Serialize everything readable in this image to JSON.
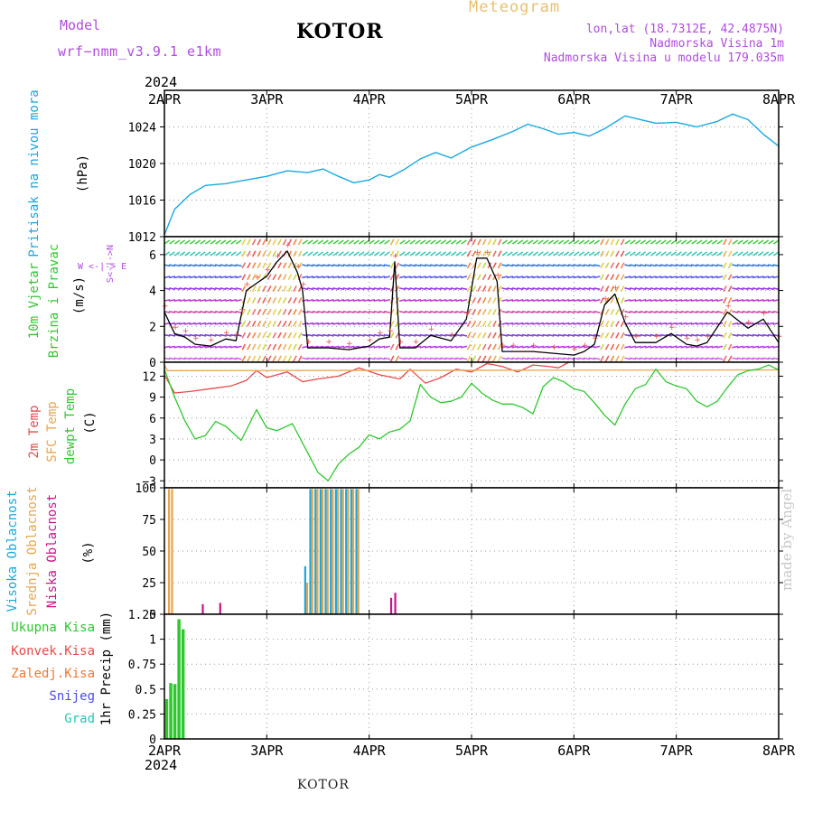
{
  "header": {
    "model_label": "Model",
    "model_name": "wrf−nmm_v3.9.1  e1km",
    "station": "KOTOR",
    "meteogram_label": "Meteogram",
    "lonlat": "lon,lat (18.7312E, 42.4875N)",
    "altitude": "Nadmorska Visina 1m",
    "model_altitude": "Nadmorska Visina u modelu 179.035m",
    "watermark": "made by Angel",
    "footer_station": "KOTOR"
  },
  "time_axis": {
    "year": "2024",
    "ticks": [
      "2APR",
      "3APR",
      "4APR",
      "5APR",
      "6APR",
      "7APR",
      "8APR"
    ],
    "range_days": [
      0,
      6
    ]
  },
  "colors": {
    "pressure": "#19a8e0",
    "temp2m": "#e84a4a",
    "sfc_temp": "#e8a54a",
    "dewpt": "#2ec82e",
    "high_cloud": "#19a8e0",
    "mid_cloud": "#e8a54a",
    "low_cloud": "#c8148c",
    "total_precip": "#2ec82e",
    "conv_precip": "#e84a4a",
    "frozen_precip": "#f07830",
    "snow": "#4a4ae8",
    "hail": "#26c8b4",
    "wind_speed_line": "#000000",
    "ylabel_pressure": "#19a8e0",
    "ylabel_wind": "#2ec82e"
  },
  "chart_data": [
    {
      "type": "line",
      "name": "pressure",
      "ylabel": [
        "Pritisak na nivou mora",
        "(hPa)"
      ],
      "ylim": [
        1012,
        1028
      ],
      "yticks": [
        1012,
        1016,
        1020,
        1024
      ],
      "grid": true,
      "series": [
        {
          "x": [
            0,
            0.1,
            0.25,
            0.4,
            0.6,
            0.8,
            1.0,
            1.2,
            1.4,
            1.55,
            1.7,
            1.85,
            2.0,
            2.1,
            2.2,
            2.35,
            2.5,
            2.65,
            2.8,
            3.0,
            3.2,
            3.4,
            3.55,
            3.7,
            3.85,
            4.0,
            4.15,
            4.3,
            4.5,
            4.65,
            4.8,
            5.0,
            5.2,
            5.4,
            5.55,
            5.7,
            5.85,
            6.0
          ],
          "y": [
            1012.2,
            1015.0,
            1016.6,
            1017.6,
            1017.8,
            1018.2,
            1018.6,
            1019.2,
            1019.0,
            1019.4,
            1018.6,
            1017.9,
            1018.2,
            1018.8,
            1018.5,
            1019.4,
            1020.5,
            1021.2,
            1020.6,
            1021.8,
            1022.6,
            1023.5,
            1024.3,
            1023.8,
            1023.2,
            1023.4,
            1023.0,
            1023.8,
            1025.2,
            1024.8,
            1024.4,
            1024.5,
            1024.0,
            1024.6,
            1025.4,
            1024.8,
            1023.2,
            1021.9
          ]
        }
      ]
    },
    {
      "type": "line",
      "name": "wind",
      "ylabel": [
        "10m Vjetar",
        "Brzina i Pravac",
        "(m/s)"
      ],
      "compass": "W <-|-> E",
      "compass_vertical": "S<-|->N",
      "ylim": [
        0,
        7
      ],
      "yticks": [
        0,
        2,
        4,
        6
      ],
      "grid": true,
      "series": [
        {
          "x": [
            0,
            0.1,
            0.2,
            0.3,
            0.45,
            0.6,
            0.7,
            0.75,
            0.8,
            0.9,
            1.0,
            1.1,
            1.2,
            1.3,
            1.35,
            1.4,
            1.6,
            1.8,
            2.0,
            2.1,
            2.2,
            2.25,
            2.3,
            2.45,
            2.6,
            2.8,
            2.95,
            3.05,
            3.15,
            3.25,
            3.3,
            3.4,
            3.6,
            3.8,
            4.0,
            4.1,
            4.2,
            4.3,
            4.4,
            4.5,
            4.6,
            4.8,
            4.95,
            5.1,
            5.2,
            5.3,
            5.5,
            5.7,
            5.85,
            6.0
          ],
          "y": [
            2.8,
            1.6,
            1.4,
            1.0,
            0.9,
            1.3,
            1.2,
            2.6,
            4.0,
            4.4,
            4.8,
            5.6,
            6.2,
            5.0,
            4.0,
            0.8,
            0.8,
            0.7,
            0.9,
            1.3,
            1.4,
            5.6,
            0.8,
            0.8,
            1.5,
            1.2,
            2.4,
            5.8,
            5.8,
            4.5,
            0.6,
            0.6,
            0.6,
            0.5,
            0.4,
            0.6,
            1.0,
            3.2,
            3.8,
            2.2,
            1.1,
            1.1,
            1.6,
            1.0,
            0.9,
            1.1,
            2.8,
            1.9,
            2.4,
            1.1
          ]
        }
      ]
    },
    {
      "type": "line",
      "name": "temperature",
      "ylabel": [
        "2m Temp",
        "SFC Temp",
        "dewpt Temp",
        "(C)"
      ],
      "ylim": [
        -4,
        14
      ],
      "yticks": [
        -3,
        0,
        3,
        6,
        9,
        12
      ],
      "grid": true,
      "series": [
        {
          "name": "2m Temp",
          "x": [
            0,
            0.1,
            0.25,
            0.45,
            0.65,
            0.8,
            0.9,
            1.0,
            1.2,
            1.35,
            1.5,
            1.7,
            1.9,
            2.1,
            2.3,
            2.4,
            2.55,
            2.7,
            2.85,
            3.0,
            3.15,
            3.3,
            3.45,
            3.6,
            3.75,
            3.85,
            3.95
          ],
          "y": [
            12.2,
            9.6,
            9.8,
            10.2,
            10.6,
            11.4,
            12.8,
            11.8,
            12.6,
            11.2,
            11.6,
            12.0,
            13.2,
            12.2,
            11.6,
            13.0,
            11.0,
            11.8,
            13.0,
            12.6,
            13.8,
            13.4,
            12.6,
            13.6,
            13.4,
            13.2,
            14.0
          ]
        },
        {
          "name": "SFC Temp",
          "x": [
            0,
            0.03,
            6.0
          ],
          "y": [
            13.6,
            12.8,
            12.9
          ]
        },
        {
          "name": "dewpt Temp",
          "x": [
            0,
            0.1,
            0.2,
            0.3,
            0.4,
            0.5,
            0.6,
            0.75,
            0.9,
            1.0,
            1.1,
            1.25,
            1.4,
            1.5,
            1.6,
            1.7,
            1.8,
            1.9,
            2.0,
            2.1,
            2.2,
            2.3,
            2.4,
            2.5,
            2.6,
            2.7,
            2.8,
            2.9,
            3.0,
            3.1,
            3.2,
            3.3,
            3.4,
            3.5,
            3.6,
            3.7,
            3.8,
            3.9,
            4.0,
            4.1,
            4.2,
            4.3,
            4.4,
            4.5,
            4.6,
            4.7,
            4.8,
            4.9,
            5.0,
            5.1,
            5.2,
            5.3,
            5.4,
            5.5,
            5.6,
            5.7,
            5.8,
            5.9,
            6.0
          ],
          "y": [
            13.0,
            9.0,
            5.6,
            3.0,
            3.5,
            5.5,
            4.8,
            2.8,
            7.2,
            4.6,
            4.2,
            5.2,
            1.0,
            -1.8,
            -3.0,
            -0.6,
            0.8,
            1.8,
            3.6,
            3.0,
            4.0,
            4.4,
            5.6,
            10.8,
            9.0,
            8.2,
            8.4,
            9.0,
            11.0,
            9.6,
            8.6,
            8.0,
            8.0,
            7.5,
            6.6,
            10.5,
            11.8,
            11.2,
            10.2,
            9.8,
            8.2,
            6.4,
            5.0,
            8.0,
            10.2,
            10.8,
            13.0,
            11.2,
            10.6,
            10.2,
            8.4,
            7.6,
            8.4,
            10.4,
            12.2,
            12.8,
            13.0,
            13.6,
            12.9
          ]
        }
      ]
    },
    {
      "type": "bar",
      "name": "cloud",
      "ylabel": [
        "Visoka Oblacnost",
        "Srednja Oblacnost",
        "Niska Oblacnost",
        "(%)"
      ],
      "ylim": [
        0,
        100
      ],
      "yticks": [
        0,
        25,
        50,
        75,
        100
      ],
      "grid": true,
      "series": [
        {
          "name": "Visoka Oblacnost",
          "x": [
            1.37,
            1.42,
            1.47,
            1.52,
            1.57,
            1.62,
            1.67,
            1.72,
            1.77,
            1.82,
            1.87
          ],
          "values": [
            38,
            99,
            99,
            99,
            99,
            99,
            99,
            99,
            99,
            99,
            99
          ]
        },
        {
          "name": "Srednja Oblacnost",
          "x": [
            0.02,
            0.05,
            1.37,
            1.42,
            1.47,
            1.52,
            1.57,
            1.62,
            1.67,
            1.72,
            1.77,
            1.82,
            1.87
          ],
          "values": [
            99,
            99,
            25,
            99,
            99,
            99,
            99,
            99,
            99,
            99,
            99,
            99,
            99
          ]
        },
        {
          "name": "Niska Oblacnost",
          "x": [
            0.36,
            0.53,
            2.2,
            2.24
          ],
          "values": [
            8,
            9,
            13,
            17
          ]
        }
      ]
    },
    {
      "type": "bar",
      "name": "precipitation",
      "ylabel": [
        "1hr Precip",
        "(mm)"
      ],
      "legend": [
        "Ukupna Kisa",
        "Konvek.Kisa",
        "Zaledj.Kisa",
        "Snijeg",
        "Grad"
      ],
      "ylim": [
        0,
        1.25
      ],
      "yticks": [
        0,
        0.25,
        0.5,
        0.75,
        1,
        1.25
      ],
      "grid": true,
      "series": [
        {
          "name": "Ukupna Kisa",
          "x": [
            0.02,
            0.06,
            0.1,
            0.14,
            0.18
          ],
          "values": [
            0.4,
            0.56,
            0.55,
            1.2,
            1.1
          ]
        }
      ]
    }
  ]
}
